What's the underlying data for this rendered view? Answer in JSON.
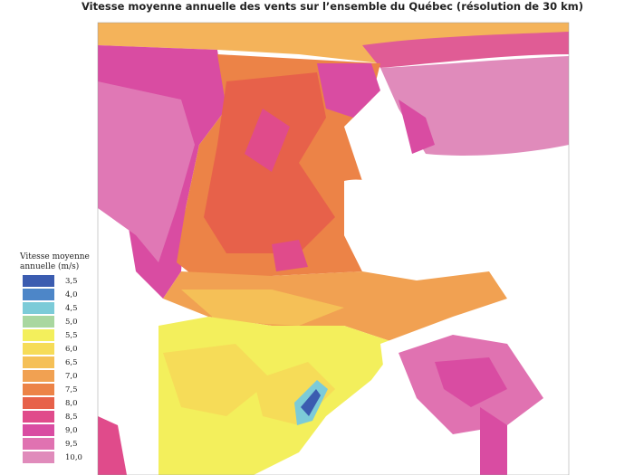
{
  "title": "Vitesse moyenne annuelle des vents sur l’ensemble du Québec (résolution de 30 km)",
  "legend": {
    "title": [
      "Vitesse moyenne",
      "annuelle (m/s)"
    ],
    "items": [
      {
        "label": "3,5",
        "color": "#3b5cb0"
      },
      {
        "label": "4,0",
        "color": "#4d86c8"
      },
      {
        "label": "4,5",
        "color": "#7ccbd8"
      },
      {
        "label": "5,0",
        "color": "#a9d7a0"
      },
      {
        "label": "5,5",
        "color": "#f3ef5c"
      },
      {
        "label": "6,0",
        "color": "#f6dc58"
      },
      {
        "label": "6,5",
        "color": "#f5c057"
      },
      {
        "label": "7,0",
        "color": "#f1a152"
      },
      {
        "label": "7,5",
        "color": "#ec8347"
      },
      {
        "label": "8,0",
        "color": "#e7614a"
      },
      {
        "label": "8,5",
        "color": "#e04b8b"
      },
      {
        "label": "9,0",
        "color": "#d94ca2"
      },
      {
        "label": "9,5",
        "color": "#e072b1"
      },
      {
        "label": "10,0",
        "color": "#e08bbb"
      }
    ]
  }
}
